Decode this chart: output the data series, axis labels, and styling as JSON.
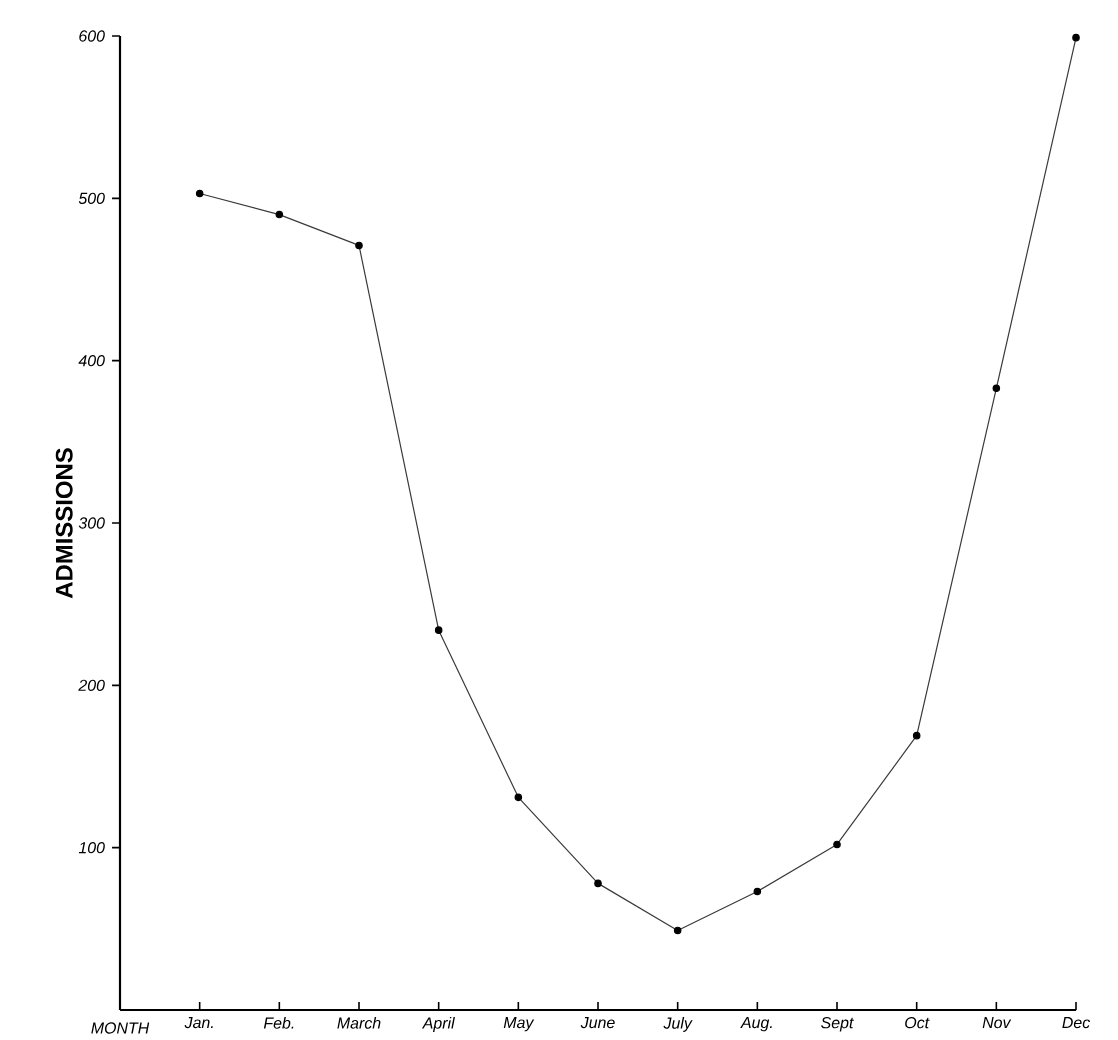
{
  "chart_data": {
    "type": "line",
    "xlabel": "MONTH",
    "ylabel": "ADMISSIONS",
    "categories": [
      "Jan.",
      "Feb.",
      "March",
      "April",
      "May",
      "June",
      "July",
      "Aug.",
      "Sept",
      "Oct",
      "Nov",
      "Dec"
    ],
    "series": [
      {
        "color": "#3a3a3a",
        "values": [
          503,
          490,
          471,
          234,
          131,
          78,
          49,
          73,
          102,
          169,
          383,
          599
        ]
      }
    ],
    "ylim": [
      0,
      600
    ],
    "yticks": [
      100,
      200,
      300,
      400,
      500,
      600
    ],
    "marker": "circle",
    "line_style": "solid",
    "grid": false
  }
}
